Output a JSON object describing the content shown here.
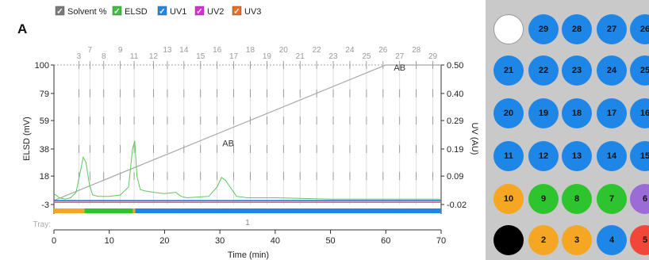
{
  "figure_label": "A",
  "legend": [
    {
      "label": "Solvent %",
      "color": "#7a7a7a",
      "checked": true
    },
    {
      "label": "ELSD",
      "color": "#3cc23c",
      "checked": true
    },
    {
      "label": "UV1",
      "color": "#1e86e6",
      "checked": true
    },
    {
      "label": "UV2",
      "color": "#d92cd9",
      "checked": true
    },
    {
      "label": "UV3",
      "color": "#f06a22",
      "checked": true
    }
  ],
  "chart_data": {
    "type": "line",
    "xlabel": "Time (min)",
    "ylabel_left": "ELSD (mV)",
    "ylabel_right": "UV (AU)",
    "xlim": [
      0,
      70
    ],
    "x_ticks": [
      0,
      10,
      20,
      30,
      40,
      50,
      60,
      70
    ],
    "y_left_ticks": [
      -3,
      18,
      38,
      59,
      79,
      100
    ],
    "y_right_ticks": [
      "-0.02",
      "0.09",
      "0.19",
      "0.29",
      "0.40",
      "0.50"
    ],
    "fraction_ticks": [
      {
        "label": "3",
        "t": 4.5
      },
      {
        "label": "7",
        "t": 6.5
      },
      {
        "label": "8",
        "t": 9.0
      },
      {
        "label": "9",
        "t": 12.0
      },
      {
        "label": "11",
        "t": 14.5
      },
      {
        "label": "13",
        "t": 20.5
      },
      {
        "label": "12",
        "t": 18.0
      },
      {
        "label": "14",
        "t": 23.5
      },
      {
        "label": "15",
        "t": 26.5
      },
      {
        "label": "16",
        "t": 29.5
      },
      {
        "label": "17",
        "t": 32.5
      },
      {
        "label": "18",
        "t": 35.5
      },
      {
        "label": "19",
        "t": 38.5
      },
      {
        "label": "20",
        "t": 41.5
      },
      {
        "label": "21",
        "t": 44.5
      },
      {
        "label": "22",
        "t": 47.5
      },
      {
        "label": "23",
        "t": 50.5
      },
      {
        "label": "24",
        "t": 53.5
      },
      {
        "label": "25",
        "t": 56.5
      },
      {
        "label": "26",
        "t": 59.5
      },
      {
        "label": "27",
        "t": 62.5
      },
      {
        "label": "28",
        "t": 65.5
      },
      {
        "label": "29",
        "t": 68.5
      }
    ],
    "series": [
      {
        "name": "Solvent %",
        "color": "#a8a8a8",
        "x": [
          0,
          60,
          70
        ],
        "y": [
          0,
          100,
          100
        ]
      },
      {
        "name": "ELSD",
        "color": "#5cc85c",
        "x": [
          0,
          1,
          2,
          3,
          4,
          4.8,
          5.3,
          5.8,
          6.4,
          7,
          8,
          10,
          12,
          13.5,
          14.2,
          14.6,
          15,
          15.6,
          16.5,
          18,
          20,
          22,
          23,
          24,
          28,
          29.5,
          30.3,
          31,
          32,
          33,
          35,
          40,
          50,
          60,
          70
        ],
        "y": [
          5,
          2,
          1,
          2,
          6,
          22,
          32,
          28,
          12,
          4,
          3,
          3,
          4,
          10,
          38,
          44,
          18,
          8,
          7,
          6,
          5,
          6,
          3,
          2,
          3,
          10,
          17,
          15,
          9,
          3,
          2,
          2,
          1,
          1,
          1
        ]
      },
      {
        "name": "UV1",
        "color": "#1e86e6",
        "x": [
          0,
          70
        ],
        "y": [
          0.02,
          0.02
        ]
      },
      {
        "name": "UV2",
        "color": "#d92cd9",
        "x": [
          0,
          70
        ],
        "y": [
          -0.5,
          -0.5
        ]
      },
      {
        "name": "UV3",
        "color": "#f06a22",
        "x": [
          0,
          70
        ],
        "y": [
          -1.5,
          -1.5
        ]
      }
    ],
    "annotations": [
      {
        "text": "AB",
        "t": 62.5,
        "v": 96
      },
      {
        "text": "AB",
        "t": 31.5,
        "v": 40
      }
    ],
    "tray_label": "Tray:",
    "tray_number": "1",
    "tray_segments": [
      {
        "from": 0,
        "to": 5.5,
        "color": "#f5a623"
      },
      {
        "from": 5.5,
        "to": 14.3,
        "color": "#2ec42e"
      },
      {
        "from": 14.3,
        "to": 14.7,
        "color": "#f5a623"
      },
      {
        "from": 14.7,
        "to": 70,
        "color": "#1e86e6"
      }
    ]
  },
  "tray": {
    "rows": [
      [
        {
          "label": "",
          "color": "#ffffff"
        },
        {
          "label": "29",
          "color": "#1e86e6"
        },
        {
          "label": "28",
          "color": "#1e86e6"
        },
        {
          "label": "27",
          "color": "#1e86e6"
        },
        {
          "label": "26",
          "color": "#1e86e6"
        }
      ],
      [
        {
          "label": "21",
          "color": "#1e86e6"
        },
        {
          "label": "22",
          "color": "#1e86e6"
        },
        {
          "label": "23",
          "color": "#1e86e6"
        },
        {
          "label": "24",
          "color": "#1e86e6"
        },
        {
          "label": "25",
          "color": "#1e86e6"
        }
      ],
      [
        {
          "label": "20",
          "color": "#1e86e6"
        },
        {
          "label": "19",
          "color": "#1e86e6"
        },
        {
          "label": "18",
          "color": "#1e86e6"
        },
        {
          "label": "17",
          "color": "#1e86e6"
        },
        {
          "label": "16",
          "color": "#1e86e6"
        }
      ],
      [
        {
          "label": "11",
          "color": "#1e86e6"
        },
        {
          "label": "12",
          "color": "#1e86e6"
        },
        {
          "label": "13",
          "color": "#1e86e6"
        },
        {
          "label": "14",
          "color": "#1e86e6"
        },
        {
          "label": "15",
          "color": "#1e86e6"
        }
      ],
      [
        {
          "label": "10",
          "color": "#f5a623"
        },
        {
          "label": "9",
          "color": "#2ec42e"
        },
        {
          "label": "8",
          "color": "#2ec42e"
        },
        {
          "label": "7",
          "color": "#2ec42e"
        },
        {
          "label": "6",
          "color": "#9b6bd6"
        }
      ],
      [
        {
          "label": "",
          "color": "#000000"
        },
        {
          "label": "2",
          "color": "#f5a623"
        },
        {
          "label": "3",
          "color": "#f5a623"
        },
        {
          "label": "4",
          "color": "#1e86e6"
        },
        {
          "label": "5",
          "color": "#f0473a"
        }
      ]
    ]
  }
}
